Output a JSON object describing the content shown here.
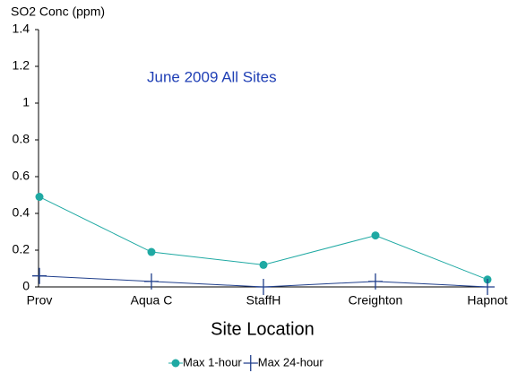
{
  "chart_data": {
    "type": "line",
    "y_axis_label": "SO2 Conc (ppm)",
    "x_axis_label": "Site Location",
    "annotation": "June 2009 All Sites",
    "categories": [
      "Prov",
      "Aqua C",
      "StaffH",
      "Creighton",
      "Hapnot"
    ],
    "series": [
      {
        "name": "Max 1-hour",
        "color": "#1fa9a3",
        "marker": "circle",
        "values": [
          0.49,
          0.19,
          0.12,
          0.28,
          0.04
        ]
      },
      {
        "name": "Max 24-hour",
        "color": "#203f8c",
        "marker": "plus",
        "values": [
          0.06,
          0.03,
          0.0,
          0.03,
          0.0
        ]
      }
    ],
    "ylim": [
      0,
      1.4
    ],
    "yticks": [
      0,
      0.2,
      0.4,
      0.6,
      0.8,
      1,
      1.2,
      1.4
    ],
    "legend": "bottom"
  }
}
